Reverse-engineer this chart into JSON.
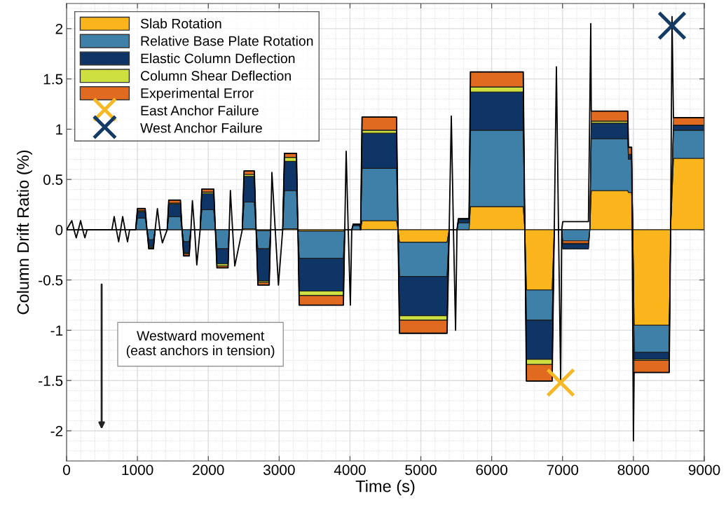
{
  "chart_data": {
    "type": "area",
    "stacked": true,
    "xlabel": "Time (s)",
    "ylabel": "Column Drift Ratio (%)",
    "x": [
      0,
      975,
      1000,
      1110,
      1135,
      1160,
      1226,
      1250,
      1420,
      1442,
      1607,
      1630,
      1652,
      1731,
      1755,
      1885,
      1909,
      2077,
      2100,
      2122,
      2279,
      2295,
      2480,
      2505,
      2650,
      2675,
      2700,
      2860,
      2880,
      3050,
      3075,
      3245,
      3265,
      3283,
      3907,
      3926,
      4025,
      4045,
      4135,
      4150,
      4170,
      4657,
      4678,
      4698,
      5370,
      5400,
      5510,
      5530,
      5680,
      5700,
      6445,
      6468,
      6490,
      6853,
      6883,
      6988,
      7003,
      7365,
      7385,
      7405,
      7920,
      7930,
      7975,
      7992,
      8010,
      8505,
      8525,
      8565,
      9000
    ],
    "series": [
      {
        "name": "Slab Rotation",
        "color": "#f9b51b",
        "values": [
          0,
          0,
          0,
          0,
          0,
          0,
          0,
          0,
          0,
          0,
          0,
          0,
          0,
          0,
          0,
          0,
          0,
          0,
          0,
          0,
          0,
          0,
          0,
          0.01,
          0.01,
          0,
          -0.01,
          -0.01,
          0,
          0,
          0.01,
          0.01,
          0,
          -0.015,
          -0.015,
          0,
          0,
          0,
          0,
          0,
          0.09,
          0.09,
          0,
          -0.125,
          -0.125,
          0,
          0,
          0,
          0,
          0.23,
          0.23,
          0,
          -0.6,
          -0.6,
          0,
          0,
          0,
          0,
          0,
          0.39,
          0.39,
          0.37,
          0.37,
          0,
          -0.95,
          -0.95,
          0,
          0.71,
          0.71
        ]
      },
      {
        "name": "Relative Base Plate Rotation",
        "color": "#3f80a8",
        "values": [
          0,
          0,
          0.115,
          0.115,
          0,
          -0.1,
          -0.1,
          0,
          0,
          0.13,
          0.13,
          0,
          -0.12,
          -0.12,
          0,
          0,
          0.2,
          0.2,
          0,
          -0.19,
          -0.19,
          0,
          0,
          0.265,
          0.265,
          0,
          -0.18,
          -0.18,
          0,
          0,
          0.38,
          0.38,
          0,
          -0.27,
          -0.27,
          0,
          0,
          0.04,
          0.04,
          0,
          0.52,
          0.52,
          0,
          -0.34,
          -0.34,
          0,
          0,
          0.07,
          0.07,
          0.76,
          0.76,
          0,
          -0.3,
          -0.3,
          0,
          0,
          -0.19,
          -0.19,
          0,
          0.515,
          0.515,
          0.33,
          0.33,
          0,
          -0.27,
          -0.27,
          0,
          0.28,
          0.28
        ]
      },
      {
        "name": "Elastic Column Deflection",
        "color": "#0f3466",
        "values": [
          0,
          0,
          0.065,
          0.065,
          0,
          -0.07,
          -0.07,
          0,
          0,
          0.125,
          0.125,
          0,
          -0.11,
          -0.11,
          0,
          0,
          0.16,
          0.16,
          0,
          -0.15,
          -0.15,
          0,
          0,
          0.255,
          0.255,
          0,
          -0.32,
          -0.32,
          0,
          0,
          0.29,
          0.29,
          0,
          -0.325,
          -0.325,
          0,
          0,
          0.016,
          0.016,
          0,
          0.35,
          0.35,
          0,
          -0.39,
          -0.39,
          0,
          0,
          0.03,
          0.03,
          0.38,
          0.38,
          0,
          -0.39,
          -0.39,
          0,
          0,
          0.05,
          0.05,
          0,
          0.155,
          0.155,
          0.05,
          0.05,
          0,
          -0.07,
          -0.07,
          0,
          0.05,
          0.05
        ]
      },
      {
        "name": "Column Shear Deflection",
        "color": "#cde03f",
        "values": [
          0,
          0,
          0.01,
          0.01,
          0,
          -0.01,
          -0.01,
          0,
          0,
          0.01,
          0.01,
          0,
          -0.01,
          -0.01,
          0,
          0,
          0.015,
          0.015,
          0,
          -0.02,
          -0.02,
          0,
          0,
          0.02,
          0.02,
          0,
          -0.015,
          -0.015,
          0,
          0,
          0.04,
          0.04,
          0,
          -0.045,
          -0.045,
          0,
          0,
          0,
          0,
          0,
          0.03,
          0.03,
          0,
          -0.045,
          -0.045,
          0,
          0,
          0,
          0,
          0.05,
          0.05,
          0,
          -0.05,
          -0.05,
          0,
          0,
          0.005,
          0.005,
          0,
          0.02,
          0.02,
          0,
          0,
          0,
          -0.01,
          -0.01,
          0,
          0,
          0
        ]
      },
      {
        "name": "Experimental Error",
        "color": "#df6a20",
        "values": [
          0,
          0,
          0.02,
          0.02,
          0,
          -0.01,
          -0.01,
          0,
          0,
          0.03,
          0.03,
          0,
          -0.02,
          -0.02,
          0,
          0,
          0.03,
          0.03,
          0,
          -0.02,
          -0.02,
          0,
          0,
          0.035,
          0.035,
          0,
          -0.025,
          -0.025,
          0,
          0,
          0.04,
          0.04,
          0,
          -0.095,
          -0.095,
          0,
          0,
          0,
          0,
          0,
          0.13,
          0.13,
          0,
          -0.13,
          -0.13,
          0,
          0,
          0.01,
          0.01,
          0.15,
          0.15,
          0,
          -0.165,
          -0.165,
          0,
          0,
          0.025,
          0.025,
          0,
          0.1,
          0.1,
          0.07,
          0.07,
          0,
          -0.12,
          -0.12,
          0,
          0.075,
          0.075
        ]
      },
      {
        "type": "line",
        "color": "#000000",
        "x": [
          0,
          74,
          105,
          136,
          167,
          198,
          228,
          258,
          290,
          640,
          672,
          703,
          735,
          763,
          792,
          826,
          860,
          890,
          975,
          1000,
          1110,
          1135,
          1160,
          1226,
          1250,
          1282,
          1317,
          1352,
          1420,
          1442,
          1607,
          1630,
          1652,
          1731,
          1755,
          1776,
          1807,
          1838,
          1885,
          1909,
          2077,
          2100,
          2122,
          2279,
          2295,
          2312,
          2343,
          2374,
          2480,
          2505,
          2650,
          2675,
          2700,
          2860,
          2880,
          2898,
          2945,
          2990,
          3050,
          3075,
          3245,
          3265,
          3283,
          3907,
          3926,
          3946,
          3975,
          4005,
          4025,
          4045,
          4135,
          4150,
          4170,
          4657,
          4678,
          4698,
          5370,
          5400,
          5430,
          5460,
          5490,
          5510,
          5530,
          5680,
          5700,
          6445,
          6468,
          6490,
          6853,
          6883,
          6913,
          6943,
          6973,
          6988,
          7003,
          7365,
          7398,
          7405,
          7920,
          7930,
          7975,
          8000,
          8010,
          8505,
          8525,
          8545,
          8565,
          9000
        ],
        "values": [
          0,
          0.09,
          0,
          -0.08,
          0,
          0.09,
          0,
          -0.08,
          0,
          0,
          0.13,
          0,
          -0.12,
          0,
          0.13,
          0,
          -0.12,
          0,
          0,
          0.21,
          0.21,
          0,
          -0.19,
          -0.19,
          0,
          0.21,
          0,
          -0.13,
          0,
          0.295,
          0.295,
          0,
          -0.26,
          -0.26,
          0,
          0.29,
          0,
          -0.35,
          0,
          0.405,
          0.405,
          0,
          -0.38,
          -0.38,
          0,
          0.39,
          0,
          -0.36,
          0,
          0.585,
          0.585,
          0,
          -0.55,
          -0.55,
          0,
          0.57,
          0,
          -0.55,
          0,
          0.76,
          0.76,
          0,
          -0.75,
          -0.75,
          0,
          0.78,
          0,
          -0.75,
          0,
          0.056,
          0.056,
          0,
          1.12,
          1.12,
          0,
          -1.03,
          -1.03,
          0,
          1.13,
          0,
          -1.0,
          0,
          0.11,
          0.11,
          1.57,
          1.57,
          0,
          -1.505,
          -1.505,
          0,
          1.62,
          0,
          -1.5,
          0,
          0.08,
          0.08,
          2.05,
          1.18,
          1.18,
          0.82,
          0.82,
          -2.1,
          -1.42,
          -1.42,
          0,
          2.12,
          1.115,
          1.115
        ]
      },
      {
        "type": "scatter",
        "name": "East Anchor Failure",
        "color": "#f6b825",
        "marker": "cross",
        "x": [
          6973
        ],
        "values": [
          -1.52
        ]
      },
      {
        "type": "scatter",
        "name": "West Anchor Failure",
        "color": "#143b66",
        "marker": "cross",
        "x": [
          8545
        ],
        "values": [
          2.03
        ]
      }
    ],
    "xlim": [
      0,
      9000
    ],
    "xticks": [
      0,
      1000,
      2000,
      3000,
      4000,
      5000,
      6000,
      7000,
      8000,
      9000
    ],
    "ylim": [
      -2.3,
      2.25
    ],
    "yticks": [
      -2,
      -1.5,
      -1,
      -0.5,
      0,
      0.5,
      1,
      1.5,
      2
    ],
    "grid": true,
    "legend": "top left",
    "annotations": [
      "Westward movement\n(east anchors in tension)"
    ]
  }
}
